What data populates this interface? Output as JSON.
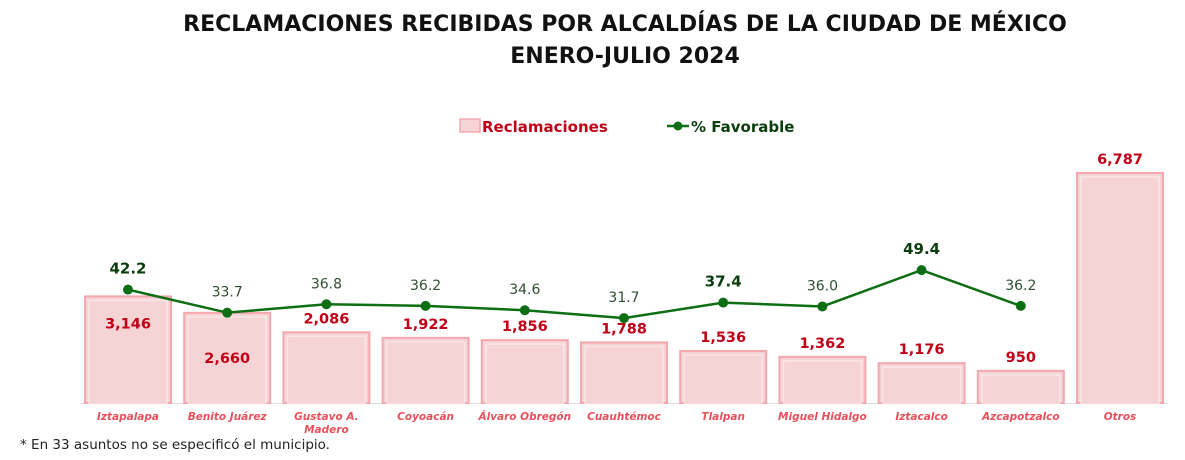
{
  "chart_data": {
    "type": "bar",
    "title": "RECLAMACIONES RECIBIDAS POR ALCALDÍAS DE LA CIUDAD DE MÉXICO",
    "subtitle": "ENERO-JULIO 2024",
    "categories": [
      "Iztapalapa",
      "Benito Juárez",
      "Gustavo A. Madero",
      "Coyoacán",
      "Álvaro Obregón",
      "Cuauhtémoc",
      "Tlalpan",
      "Miguel Hidalgo",
      "Iztacalco",
      "Azcapotzalco",
      "Otros"
    ],
    "series": [
      {
        "name": "Reclamaciones",
        "type": "bar",
        "color": "#f6d3d5",
        "label_color": "#c00016",
        "values": [
          3146,
          2660,
          2086,
          1922,
          1856,
          1788,
          1536,
          1362,
          1176,
          950,
          6787
        ],
        "labels": [
          "3,146",
          "2,660",
          "2,086",
          "1,922",
          "1,856",
          "1,788",
          "1,536",
          "1,362",
          "1,176",
          "950",
          "6,787"
        ]
      },
      {
        "name": "% Favorable",
        "type": "line",
        "color": "#0d6e14",
        "values": [
          42.2,
          33.7,
          36.8,
          36.2,
          34.6,
          31.7,
          37.4,
          36.0,
          49.4,
          36.2,
          null
        ],
        "labels": [
          "42.2",
          "33.7",
          "36.8",
          "36.2",
          "34.6",
          "31.7",
          "37.4",
          "36.0",
          "49.4",
          "36.2",
          ""
        ],
        "bold": [
          true,
          false,
          false,
          false,
          false,
          false,
          true,
          false,
          true,
          false,
          false
        ]
      }
    ],
    "legend": "top-center",
    "grid": false
  },
  "footnote": "* En 33 asuntos no se especificó el municipio."
}
